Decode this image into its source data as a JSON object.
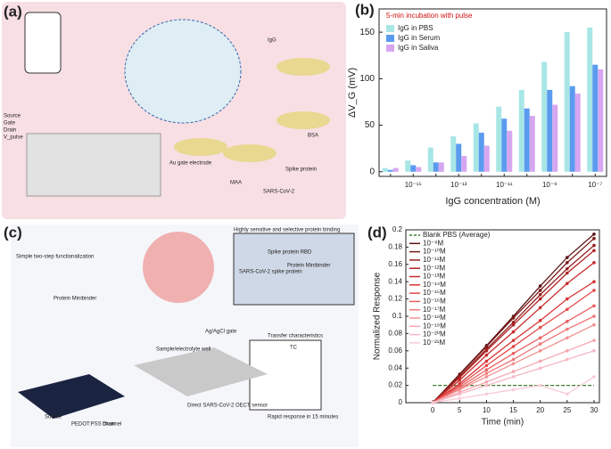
{
  "chart_data": [
    {
      "type": "bar",
      "panel_label": "(b)",
      "annotation": "5-min incubation with pulse",
      "ylabel": "ΔV_G (mV)",
      "xlabel": "IgG concentration (M)",
      "categories": [
        null,
        "10⁻¹⁵",
        null,
        "10⁻¹³",
        null,
        "10⁻¹¹",
        null,
        "10⁻⁹",
        null,
        "10⁻⁷"
      ],
      "series": [
        {
          "name": "IgG in PBS",
          "color": "#a8e6e6",
          "values": [
            4,
            12,
            26,
            38,
            52,
            70,
            88,
            118,
            150,
            155
          ]
        },
        {
          "name": "IgG in Serum",
          "color": "#5b9bef",
          "values": [
            2,
            7,
            10,
            30,
            42,
            57,
            68,
            88,
            92,
            115
          ]
        },
        {
          "name": "IgG in Saliva",
          "color": "#d6a6f0",
          "values": [
            4,
            5,
            10,
            17,
            28,
            44,
            60,
            72,
            84,
            110
          ]
        }
      ],
      "ylim": [
        -5,
        175
      ],
      "yticks": [
        0,
        50,
        100,
        150
      ],
      "legend": "upper-left"
    },
    {
      "type": "line",
      "panel_label": "(d)",
      "ylabel": "Normalized Response",
      "xlabel": "Time (min)",
      "x": [
        0,
        5,
        10,
        15,
        20,
        25,
        30
      ],
      "series": [
        {
          "name": "Blank PBS (Average)",
          "color": "#3a7a2a",
          "dashed": true,
          "values": [
            0.02,
            0.02,
            0.02,
            0.02,
            0.02,
            0.02,
            0.02
          ]
        },
        {
          "name": "10⁻⁹M",
          "color": "#5a1414",
          "values": [
            0,
            0.033,
            0.066,
            0.1,
            0.135,
            0.168,
            0.195
          ]
        },
        {
          "name": "10⁻¹⁰M",
          "color": "#7a1a1a",
          "values": [
            0,
            0.032,
            0.065,
            0.098,
            0.13,
            0.162,
            0.19
          ]
        },
        {
          "name": "10⁻¹¹M",
          "color": "#962020",
          "values": [
            0,
            0.03,
            0.062,
            0.093,
            0.125,
            0.155,
            0.182
          ]
        },
        {
          "name": "10⁻¹²M",
          "color": "#b02525",
          "values": [
            0,
            0.029,
            0.06,
            0.09,
            0.12,
            0.15,
            0.176
          ]
        },
        {
          "name": "10⁻¹³M",
          "color": "#c52b2b",
          "values": [
            0,
            0.026,
            0.055,
            0.082,
            0.11,
            0.138,
            0.162
          ]
        },
        {
          "name": "10⁻¹⁴M",
          "color": "#d83535",
          "values": [
            0,
            0.022,
            0.048,
            0.072,
            0.095,
            0.12,
            0.14
          ]
        },
        {
          "name": "10⁻¹⁵M",
          "color": "#e44a4a",
          "values": [
            0,
            0.02,
            0.043,
            0.065,
            0.087,
            0.108,
            0.13
          ]
        },
        {
          "name": "10⁻¹⁶M",
          "color": "#ea6060",
          "values": [
            0,
            0.018,
            0.038,
            0.057,
            0.075,
            0.094,
            0.112
          ]
        },
        {
          "name": "10⁻¹⁷M",
          "color": "#ee7878",
          "values": [
            0,
            0.016,
            0.034,
            0.05,
            0.068,
            0.085,
            0.1
          ]
        },
        {
          "name": "10⁻¹⁸M",
          "color": "#f29090",
          "values": [
            0,
            0.015,
            0.03,
            0.045,
            0.06,
            0.075,
            0.09
          ]
        },
        {
          "name": "10⁻¹⁹M",
          "color": "#f4a6b0",
          "values": [
            0,
            0.012,
            0.024,
            0.036,
            0.048,
            0.06,
            0.072
          ]
        },
        {
          "name": "10⁻²⁰M",
          "color": "#f6b8c4",
          "values": [
            0,
            0.01,
            0.02,
            0.03,
            0.04,
            0.05,
            0.06
          ]
        },
        {
          "name": "10⁻²¹M",
          "color": "#f8cbd6",
          "values": [
            0,
            0.005,
            0.01,
            0.015,
            0.02,
            0.01,
            0.03
          ]
        }
      ],
      "xlim": [
        -5,
        31
      ],
      "xticks": [
        0,
        5,
        10,
        15,
        20,
        25,
        30
      ],
      "ylim": [
        0,
        0.2
      ],
      "yticks": [
        0,
        0.02,
        0.04,
        0.06,
        0.08,
        0.1,
        0.12,
        0.14,
        0.16,
        0.18,
        0.2
      ],
      "legend": "upper-left"
    }
  ],
  "illustrations": {
    "a": {
      "label": "(a)",
      "texts": [
        "IgG",
        "BSA",
        "Spike protein",
        "SARS-CoV-2",
        "Au gate electrode",
        "MAA",
        "Source",
        "Gate",
        "Drain",
        "V_pulse"
      ]
    },
    "c": {
      "label": "(c)",
      "texts": [
        "Highly sensitive and selective protein binding",
        "Simple two-step functionalization",
        "Spike protein RBD",
        "SARS-CoV-2 spike protein",
        "Protein Minibinder",
        "Protein Minibinder",
        "Ag/AgCl gate",
        "Sample/electrolyte well",
        "Transfer characteristics",
        "TC",
        "Direct SARS-CoV-2 OECT sensor",
        "Rapid response in 15 minutes",
        "Source",
        "PEDOT:PSS channel",
        "Drain"
      ]
    }
  }
}
